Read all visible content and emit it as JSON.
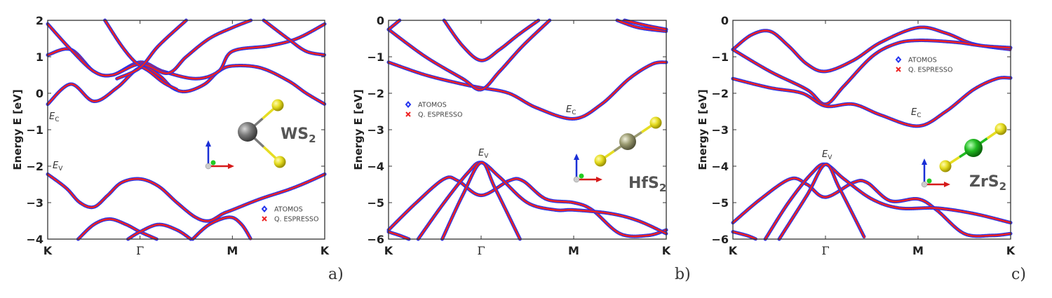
{
  "chart_data": [
    {
      "type": "line",
      "panel_label": "a)",
      "material": {
        "main": "WS",
        "sub": "2"
      },
      "ylabel": "Energy E [eV]",
      "xlabel": "",
      "xticks": [
        "K",
        "Γ",
        "M",
        "K"
      ],
      "ylim": [
        -4,
        2
      ],
      "yticks": [
        "−4",
        "−3",
        "−2",
        "−1",
        "0",
        "1",
        "2"
      ],
      "ytick_values": [
        -4,
        -3,
        -2,
        -1,
        0,
        1,
        2
      ],
      "grid": false,
      "legend": {
        "placement": "bottom-right",
        "entries": [
          "ATOMOS",
          "Q. ESPRESSO"
        ]
      },
      "band_edges": {
        "conduction": {
          "main": "E",
          "sub": "C"
        },
        "valence": {
          "main": "E",
          "sub": "V"
        }
      },
      "bands": [
        [
          [
            0,
            -2.22
          ],
          [
            0.2,
            -2.6
          ],
          [
            0.35,
            -3.0
          ],
          [
            0.5,
            -3.12
          ],
          [
            0.65,
            -2.8
          ],
          [
            0.8,
            -2.45
          ],
          [
            1,
            -2.35
          ],
          [
            1.2,
            -2.55
          ],
          [
            1.4,
            -3.0
          ],
          [
            1.6,
            -3.4
          ],
          [
            1.75,
            -3.5
          ],
          [
            1.9,
            -3.3
          ],
          [
            2,
            -3.2
          ],
          [
            2.3,
            -2.9
          ],
          [
            2.6,
            -2.65
          ],
          [
            2.8,
            -2.45
          ],
          [
            3,
            -2.22
          ]
        ],
        [
          [
            0.33,
            -4
          ],
          [
            0.5,
            -3.6
          ],
          [
            0.67,
            -3.45
          ],
          [
            0.85,
            -3.6
          ],
          [
            1,
            -3.8
          ],
          [
            1.18,
            -4
          ]
        ],
        [
          [
            0.87,
            -4
          ],
          [
            1,
            -3.8
          ],
          [
            1.2,
            -3.6
          ],
          [
            1.4,
            -3.75
          ],
          [
            1.55,
            -4
          ]
        ],
        [
          [
            1.57,
            -4
          ],
          [
            1.75,
            -3.6
          ],
          [
            1.97,
            -3.4
          ],
          [
            2.1,
            -3.6
          ],
          [
            2.2,
            -4
          ]
        ],
        [
          [
            0,
            -0.3
          ],
          [
            0.25,
            0.25
          ],
          [
            0.5,
            -0.22
          ],
          [
            0.75,
            0.15
          ],
          [
            1,
            0.7
          ],
          [
            1.2,
            0.5
          ],
          [
            1.35,
            0.15
          ],
          [
            1.5,
            0.05
          ],
          [
            1.7,
            0.25
          ],
          [
            1.85,
            0.6
          ],
          [
            2,
            0.75
          ],
          [
            2.3,
            0.7
          ],
          [
            2.6,
            0.35
          ],
          [
            2.8,
            0
          ],
          [
            3,
            -0.3
          ]
        ],
        [
          [
            0,
            1.05
          ],
          [
            0.25,
            1.2
          ],
          [
            0.5,
            0.6
          ],
          [
            0.7,
            0.5
          ],
          [
            1,
            0.85
          ],
          [
            1.25,
            0.6
          ],
          [
            1.6,
            0.4
          ],
          [
            1.85,
            0.6
          ],
          [
            2,
            1.15
          ],
          [
            2.4,
            1.3
          ],
          [
            2.7,
            1.5
          ],
          [
            3,
            1.9
          ]
        ],
        [
          [
            0,
            1.9
          ],
          [
            0.25,
            1.2
          ],
          [
            0.5,
            0.6
          ],
          [
            0.7,
            0.5
          ],
          [
            1,
            0.8
          ],
          [
            1.3,
            0.55
          ],
          [
            1.5,
            1.0
          ],
          [
            1.75,
            1.5
          ],
          [
            2,
            1.8
          ],
          [
            2.2,
            2.0
          ]
        ],
        [
          [
            0.62,
            2
          ],
          [
            0.8,
            1.3
          ],
          [
            0.95,
            0.85
          ],
          [
            1.1,
            0.6
          ],
          [
            1.25,
            0.3
          ],
          [
            1.4,
            0.1
          ]
        ],
        [
          [
            0.75,
            0.4
          ],
          [
            1,
            0.7
          ],
          [
            1.2,
            1.3
          ],
          [
            1.5,
            2.0
          ]
        ],
        [
          [
            2.34,
            2
          ],
          [
            2.6,
            1.5
          ],
          [
            2.8,
            1.15
          ],
          [
            3,
            1.05
          ]
        ]
      ]
    },
    {
      "type": "line",
      "panel_label": "b)",
      "material": {
        "main": "HfS",
        "sub": "2"
      },
      "ylabel": "Energy E [eV]",
      "xlabel": "",
      "xticks": [
        "K",
        "Γ",
        "M",
        "K"
      ],
      "ylim": [
        -6,
        0
      ],
      "yticks": [
        "−6",
        "−5",
        "−4",
        "−3",
        "−2",
        "−1",
        "0"
      ],
      "ytick_values": [
        -6,
        -5,
        -4,
        -3,
        -2,
        -1,
        0
      ],
      "grid": false,
      "legend": {
        "placement": "middle-left",
        "entries": [
          "ATOMOS",
          "Q. ESPRESSO"
        ]
      },
      "band_edges": {
        "conduction": {
          "main": "E",
          "sub": "C"
        },
        "valence": {
          "main": "E",
          "sub": "V"
        }
      },
      "bands": [
        [
          [
            0,
            -5.75
          ],
          [
            0.3,
            -5.0
          ],
          [
            0.6,
            -4.35
          ],
          [
            0.75,
            -4.4
          ],
          [
            1,
            -4.8
          ],
          [
            1.3,
            -4.4
          ],
          [
            1.45,
            -4.4
          ],
          [
            1.7,
            -4.9
          ],
          [
            2,
            -5.0
          ],
          [
            2.2,
            -5.2
          ],
          [
            2.5,
            -5.85
          ],
          [
            2.8,
            -5.9
          ],
          [
            3,
            -5.75
          ]
        ],
        [
          [
            0.32,
            -6
          ],
          [
            0.6,
            -5.0
          ],
          [
            0.85,
            -4.2
          ],
          [
            1,
            -3.9
          ],
          [
            1.2,
            -4.3
          ],
          [
            1.5,
            -5.0
          ],
          [
            1.8,
            -5.2
          ],
          [
            2,
            -5.2
          ],
          [
            2.4,
            -5.3
          ],
          [
            2.7,
            -5.5
          ],
          [
            3,
            -5.85
          ]
        ],
        [
          [
            0.58,
            -6
          ],
          [
            0.8,
            -4.8
          ],
          [
            1,
            -3.9
          ],
          [
            1.15,
            -4.6
          ],
          [
            1.42,
            -6
          ]
        ],
        [
          [
            0,
            -5.8
          ],
          [
            0.12,
            -5.9
          ],
          [
            0.22,
            -6
          ]
        ],
        [
          [
            0,
            -1.15
          ],
          [
            0.4,
            -1.5
          ],
          [
            0.8,
            -1.75
          ],
          [
            1,
            -1.85
          ],
          [
            1.3,
            -2.0
          ],
          [
            1.6,
            -2.4
          ],
          [
            2,
            -2.7
          ],
          [
            2.3,
            -2.3
          ],
          [
            2.6,
            -1.6
          ],
          [
            2.85,
            -1.2
          ],
          [
            3,
            -1.15
          ]
        ],
        [
          [
            0,
            -0.25
          ],
          [
            0.4,
            -1.0
          ],
          [
            0.8,
            -1.6
          ],
          [
            1,
            -1.9
          ],
          [
            1.2,
            -1.4
          ],
          [
            1.45,
            -0.7
          ],
          [
            1.74,
            0
          ]
        ],
        [
          [
            0.6,
            0
          ],
          [
            0.8,
            -0.7
          ],
          [
            1,
            -1.1
          ],
          [
            1.2,
            -0.8
          ],
          [
            1.4,
            -0.4
          ],
          [
            1.62,
            0
          ]
        ],
        [
          [
            0,
            -0.25
          ],
          [
            0.12,
            0
          ]
        ],
        [
          [
            2.47,
            0
          ],
          [
            2.7,
            -0.2
          ],
          [
            3,
            -0.3
          ]
        ],
        [
          [
            2.55,
            0
          ],
          [
            2.8,
            -0.15
          ],
          [
            3,
            -0.25
          ]
        ]
      ]
    },
    {
      "type": "line",
      "panel_label": "c)",
      "material": {
        "main": "ZrS",
        "sub": "2"
      },
      "ylabel": "Energy E [eV]",
      "xlabel": "",
      "xticks": [
        "K",
        "Γ",
        "M",
        "K"
      ],
      "ylim": [
        -6,
        0
      ],
      "yticks": [
        "−6",
        "−5",
        "−4",
        "−3",
        "−2",
        "−1",
        "0"
      ],
      "ytick_values": [
        -6,
        -5,
        -4,
        -3,
        -2,
        -1,
        0
      ],
      "grid": false,
      "legend": {
        "placement": "top-right",
        "entries": [
          "ATOMOS",
          "Q. ESPRESSO"
        ]
      },
      "band_edges": {
        "conduction": {
          "main": "E",
          "sub": "C"
        },
        "valence": {
          "main": "E",
          "sub": "V"
        }
      },
      "bands": [
        [
          [
            0,
            -0.8
          ],
          [
            0.2,
            -0.4
          ],
          [
            0.4,
            -0.3
          ],
          [
            0.6,
            -0.7
          ],
          [
            0.8,
            -1.2
          ],
          [
            1,
            -1.4
          ],
          [
            1.3,
            -1.1
          ],
          [
            1.6,
            -0.6
          ],
          [
            2,
            -0.2
          ],
          [
            2.3,
            -0.35
          ],
          [
            2.6,
            -0.65
          ],
          [
            3,
            -0.8
          ]
        ],
        [
          [
            0,
            -0.8
          ],
          [
            0.4,
            -1.4
          ],
          [
            0.8,
            -1.9
          ],
          [
            1,
            -2.3
          ],
          [
            1.2,
            -1.8
          ],
          [
            1.5,
            -1.0
          ],
          [
            1.75,
            -0.65
          ],
          [
            2,
            -0.55
          ],
          [
            2.4,
            -0.6
          ],
          [
            2.7,
            -0.7
          ],
          [
            3,
            -0.75
          ]
        ],
        [
          [
            0,
            -1.6
          ],
          [
            0.4,
            -1.85
          ],
          [
            0.75,
            -2.0
          ],
          [
            1,
            -2.35
          ],
          [
            1.3,
            -2.3
          ],
          [
            1.6,
            -2.6
          ],
          [
            2,
            -2.9
          ],
          [
            2.3,
            -2.5
          ],
          [
            2.6,
            -1.9
          ],
          [
            2.85,
            -1.6
          ],
          [
            3,
            -1.58
          ]
        ],
        [
          [
            0,
            -5.55
          ],
          [
            0.3,
            -4.9
          ],
          [
            0.62,
            -4.35
          ],
          [
            0.8,
            -4.5
          ],
          [
            1,
            -4.85
          ],
          [
            1.3,
            -4.45
          ],
          [
            1.45,
            -4.45
          ],
          [
            1.7,
            -4.95
          ],
          [
            2,
            -4.9
          ],
          [
            2.2,
            -5.2
          ],
          [
            2.5,
            -5.85
          ],
          [
            2.8,
            -5.9
          ],
          [
            3,
            -5.85
          ]
        ],
        [
          [
            0.35,
            -6
          ],
          [
            0.6,
            -5.0
          ],
          [
            0.85,
            -4.2
          ],
          [
            1,
            -3.95
          ],
          [
            1.2,
            -4.35
          ],
          [
            1.5,
            -4.9
          ],
          [
            1.8,
            -5.15
          ],
          [
            2.2,
            -5.15
          ],
          [
            2.6,
            -5.3
          ],
          [
            3,
            -5.55
          ]
        ],
        [
          [
            0.5,
            -6
          ],
          [
            0.8,
            -4.8
          ],
          [
            1,
            -3.95
          ],
          [
            1.15,
            -4.6
          ],
          [
            1.42,
            -5.95
          ]
        ],
        [
          [
            0,
            -5.8
          ],
          [
            0.15,
            -5.9
          ],
          [
            0.25,
            -6
          ]
        ]
      ]
    }
  ],
  "colors": {
    "atomos": "#2233ee",
    "espresso": "#ee2222",
    "axis": "#333333",
    "sulfur": "#e6dd22",
    "tungsten": "#7a7a7a",
    "hafnium": "#9a9a70",
    "zirconium": "#22bb22"
  }
}
